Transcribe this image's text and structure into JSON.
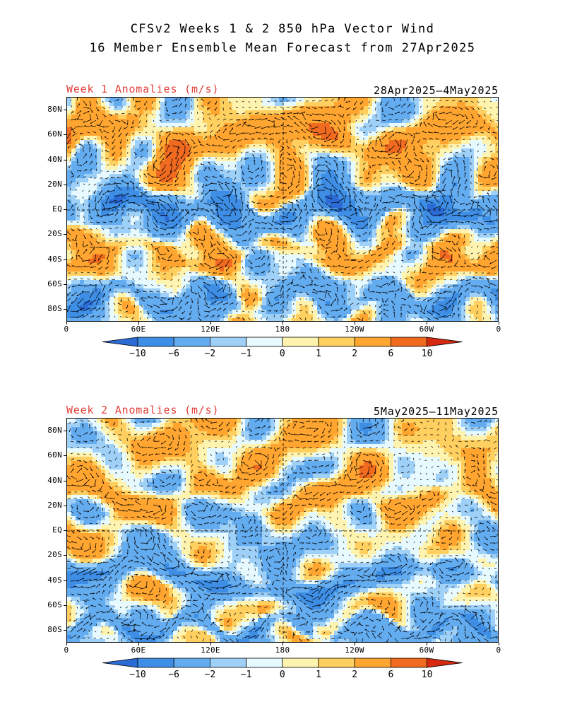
{
  "header": {
    "title": "CFSv2 Weeks 1 & 2 850 hPa Vector Wind",
    "subtitle": "16 Member Ensemble Mean Forecast from 27Apr2025"
  },
  "panels": [
    {
      "title": "Week 1 Anomalies (m/s)",
      "date_range": "28Apr2025—4May2025",
      "seed": 7
    },
    {
      "title": "Week 2 Anomalies (m/s)",
      "date_range": "5May2025—11May2025",
      "seed": 29
    }
  ],
  "axes": {
    "lat_labels": [
      "80N",
      "60N",
      "40N",
      "20N",
      "EQ",
      "20S",
      "40S",
      "60S",
      "80S"
    ],
    "lon_labels": [
      "0",
      "60E",
      "120E",
      "180",
      "120W",
      "60W",
      "0"
    ]
  },
  "colorbar": {
    "labels": [
      "−10",
      "−6",
      "−2",
      "−1",
      "0",
      "1",
      "2",
      "6",
      "10"
    ],
    "colors": [
      "#2a6bd6",
      "#3e8ee6",
      "#64acf0",
      "#9fd0f8",
      "#e6faff",
      "#fff3b0",
      "#ffd060",
      "#ffa530",
      "#f06a20",
      "#d62a10"
    ],
    "color_names": [
      "strong negative",
      "negative",
      "moderate negative",
      "weak negative",
      "near zero negative",
      "near zero positive",
      "weak positive",
      "moderate positive",
      "positive",
      "strong positive"
    ]
  }
}
